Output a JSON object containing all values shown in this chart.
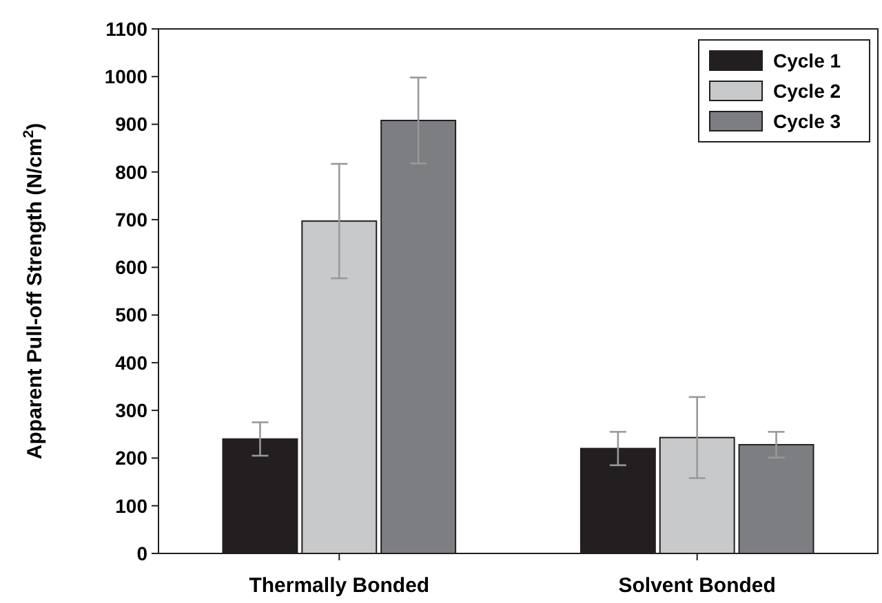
{
  "chart_data": {
    "type": "bar",
    "xlabel": null,
    "ylabel": "Apparent Pull-off Strength (N/cm$^{2}$)",
    "categories": [
      "Thermally Bonded",
      "Solvent Bonded"
    ],
    "series": [
      {
        "name": "Cycle 1",
        "color": "#231f20",
        "values": [
          240,
          220
        ],
        "errors": [
          35,
          35
        ]
      },
      {
        "name": "Cycle 2",
        "color": "#c8c9cb",
        "values": [
          697,
          243
        ],
        "errors": [
          120,
          85
        ]
      },
      {
        "name": "Cycle 3",
        "color": "#7d7e82",
        "values": [
          908,
          228
        ],
        "errors": [
          90,
          27
        ]
      }
    ],
    "ylim": [
      0,
      1100
    ],
    "yticks": [
      0,
      100,
      200,
      300,
      400,
      500,
      600,
      700,
      800,
      900,
      1000,
      1100
    ],
    "legend": "top right",
    "grid": false
  }
}
